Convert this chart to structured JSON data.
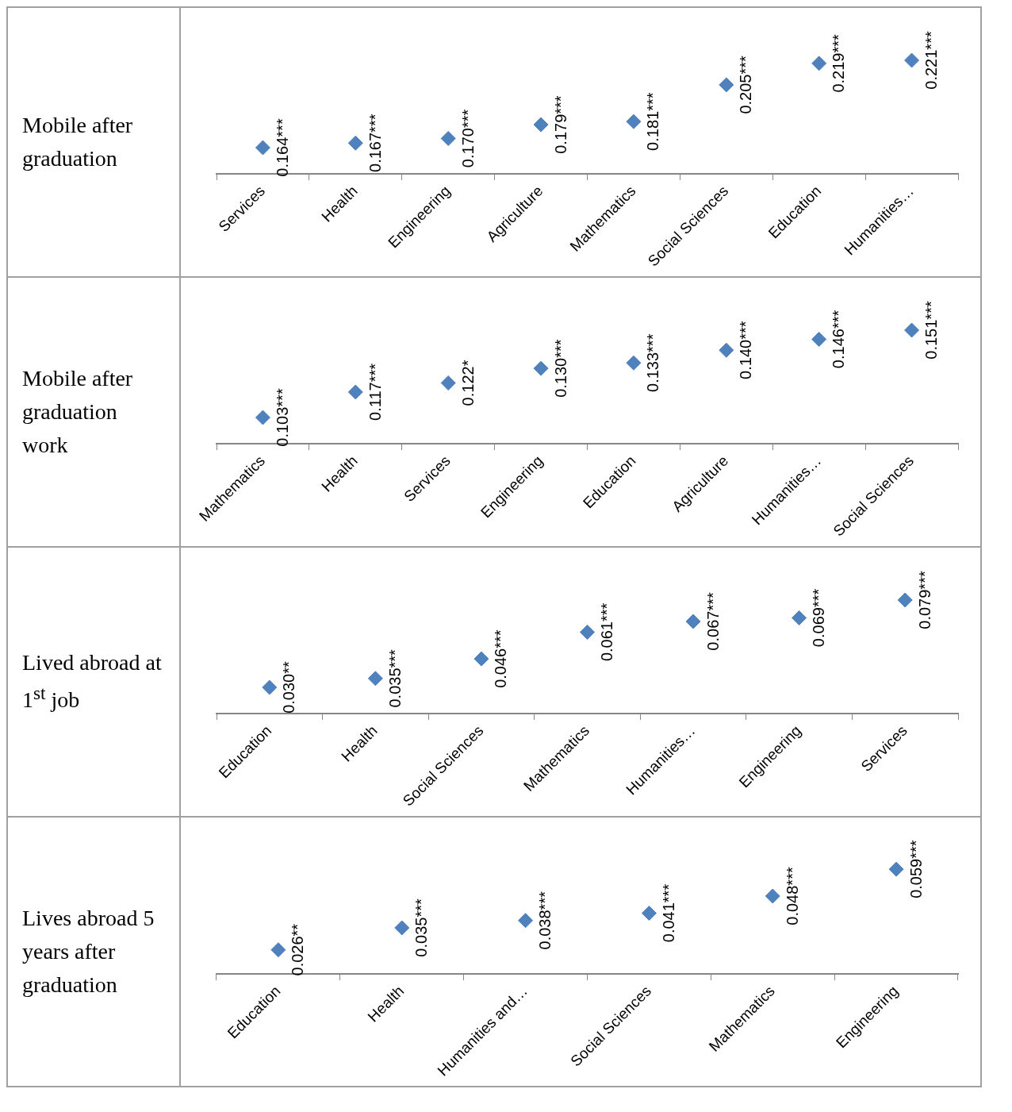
{
  "chart_data": [
    {
      "type": "scatter",
      "title": "Mobile after graduation",
      "categories": [
        "Services",
        "Health",
        "Engineering",
        "Agriculture",
        "Mathematics",
        "Social Sciences",
        "Education",
        "Humanities…"
      ],
      "values": [
        0.164,
        0.167,
        0.17,
        0.179,
        0.181,
        0.205,
        0.219,
        0.221
      ],
      "value_labels": [
        "0.164***",
        "0.167***",
        "0.170***",
        "0.179***",
        "0.181***",
        "0.205***",
        "0.219***",
        "0.221***"
      ],
      "color": "#4f81bd",
      "marker": "diamond"
    },
    {
      "type": "scatter",
      "title": "Mobile after graduation work",
      "categories": [
        "Mathematics",
        "Health",
        "Services",
        "Engineering",
        "Education",
        "Agriculture",
        "Humanities…",
        "Social Sciences"
      ],
      "values": [
        0.103,
        0.117,
        0.122,
        0.13,
        0.133,
        0.14,
        0.146,
        0.151
      ],
      "value_labels": [
        "0.103***",
        "0.117***",
        "0.122*",
        "0.130***",
        "0.133***",
        "0.140***",
        "0.146***",
        "0.151***"
      ],
      "color": "#4f81bd",
      "marker": "diamond"
    },
    {
      "type": "scatter",
      "title": "Lived abroad at 1$^{st}$ job",
      "categories": [
        "Education",
        "Health",
        "Social Sciences",
        "Mathematics",
        "Humanities…",
        "Engineering",
        "Services"
      ],
      "values": [
        0.03,
        0.035,
        0.046,
        0.061,
        0.067,
        0.069,
        0.079
      ],
      "value_labels": [
        "0.030**",
        "0.035***",
        "0.046***",
        "0.061***",
        "0.067***",
        "0.069***",
        "0.079***"
      ],
      "color": "#4f81bd",
      "marker": "diamond"
    },
    {
      "type": "scatter",
      "title": "Lives abroad 5 years after graduation",
      "categories": [
        "Education",
        "Health",
        "Humanities and…",
        "Social Sciences",
        "Mathematics",
        "Engineering"
      ],
      "values": [
        0.026,
        0.035,
        0.038,
        0.041,
        0.048,
        0.059
      ],
      "value_labels": [
        "0.026**",
        "0.035***",
        "0.038***",
        "0.041***",
        "0.048***",
        "0.059***"
      ],
      "color": "#4f81bd",
      "marker": "diamond"
    }
  ]
}
